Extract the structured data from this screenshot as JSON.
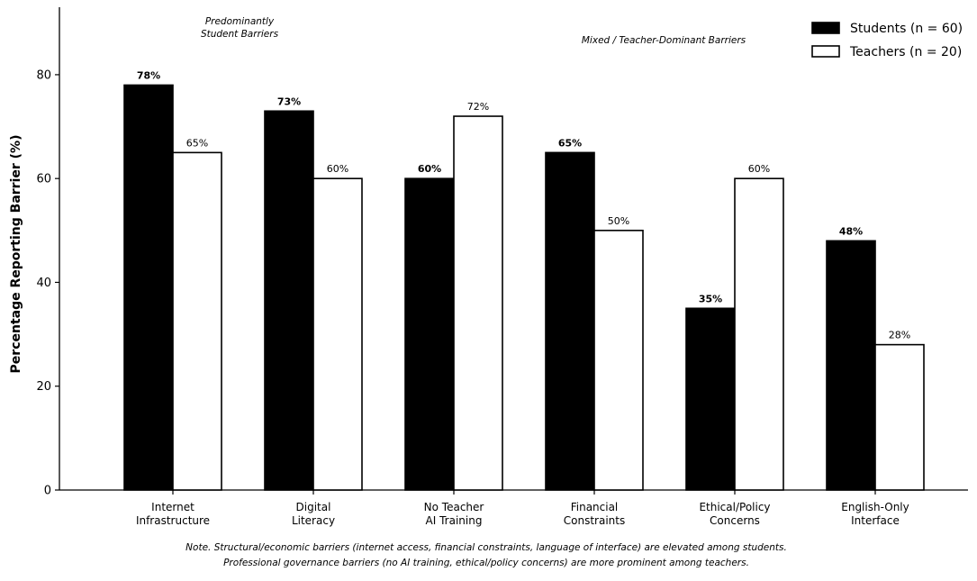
{
  "chart_data": {
    "type": "bar",
    "title": "",
    "xlabel": "",
    "ylabel": "Percentage Reporting Barrier (%)",
    "ylim": [
      0,
      93
    ],
    "yticks": [
      0,
      20,
      40,
      60,
      80
    ],
    "categories": [
      [
        "Internet",
        "Infrastructure"
      ],
      [
        "Digital",
        "Literacy"
      ],
      [
        "No Teacher",
        "AI Training"
      ],
      [
        "Financial",
        "Constraints"
      ],
      [
        "Ethical/Policy",
        "Concerns"
      ],
      [
        "English-Only",
        "Interface"
      ]
    ],
    "series": [
      {
        "name": "Students (n = 60)",
        "values": [
          78,
          73,
          60,
          65,
          35,
          48
        ],
        "labels": [
          "78%",
          "73%",
          "60%",
          "65%",
          "35%",
          "48%"
        ],
        "color": "#000000"
      },
      {
        "name": "Teachers (n = 20)",
        "values": [
          65,
          60,
          72,
          50,
          60,
          28
        ],
        "labels": [
          "65%",
          "60%",
          "72%",
          "50%",
          "60%",
          "28%"
        ],
        "color": "#ffffff"
      }
    ],
    "annotations": [
      {
        "lines": [
          "Predominantly",
          "Student Barriers"
        ]
      },
      {
        "lines": [
          "Mixed / Teacher-Dominant Barriers"
        ]
      }
    ],
    "legend_position": "top-right",
    "grid": false
  },
  "note": [
    "Note. Structural/economic barriers (internet access, financial constraints, language of interface) are elevated among students.",
    "Professional governance barriers (no AI training, ethical/policy concerns) are more prominent among teachers."
  ]
}
